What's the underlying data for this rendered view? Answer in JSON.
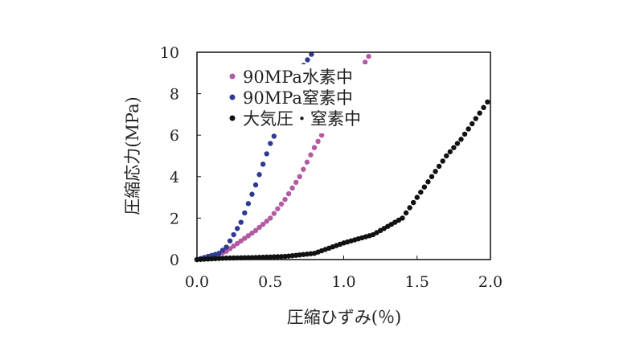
{
  "chart_data": {
    "type": "scatter",
    "title": "",
    "xlabel": "圧縮ひずみ(％)",
    "ylabel": "圧縮応力(MPa)",
    "xlim": [
      0,
      2.0
    ],
    "ylim": [
      0,
      10
    ],
    "xticks": [
      "0.0",
      "0.5",
      "1.0",
      "1.5",
      "2.0"
    ],
    "yticks": [
      "0",
      "2",
      "4",
      "6",
      "8",
      "10"
    ],
    "legend_position": "top-left",
    "grid": false,
    "series": [
      {
        "name": "90MPa水素中",
        "color": "#b25aa3",
        "x": [
          0.0,
          0.1,
          0.2,
          0.3,
          0.4,
          0.5,
          0.6,
          0.7,
          0.75,
          0.8,
          0.85,
          0.95,
          1.05,
          1.17
        ],
        "y": [
          0.0,
          0.1,
          0.4,
          0.9,
          1.4,
          2.0,
          2.9,
          4.0,
          4.7,
          5.4,
          6.0,
          7.2,
          8.4,
          9.8
        ]
      },
      {
        "name": "90MPa窒素中",
        "color": "#2e3a93",
        "x": [
          0.0,
          0.05,
          0.1,
          0.15,
          0.2,
          0.25,
          0.3,
          0.35,
          0.4,
          0.45,
          0.5,
          0.55,
          0.6,
          0.7,
          0.78
        ],
        "y": [
          0.0,
          0.1,
          0.2,
          0.3,
          0.6,
          1.2,
          1.8,
          2.7,
          3.6,
          4.6,
          5.6,
          6.3,
          7.4,
          9.1,
          9.9
        ]
      },
      {
        "name": "大気圧・窒素中",
        "color": "#111111",
        "x": [
          0.0,
          0.2,
          0.4,
          0.6,
          0.8,
          1.0,
          1.2,
          1.4,
          1.5,
          1.6,
          1.7,
          1.8,
          1.9,
          1.98
        ],
        "y": [
          0.0,
          0.07,
          0.1,
          0.15,
          0.3,
          0.8,
          1.2,
          2.0,
          3.0,
          4.0,
          5.0,
          5.8,
          6.8,
          7.6
        ]
      }
    ]
  }
}
